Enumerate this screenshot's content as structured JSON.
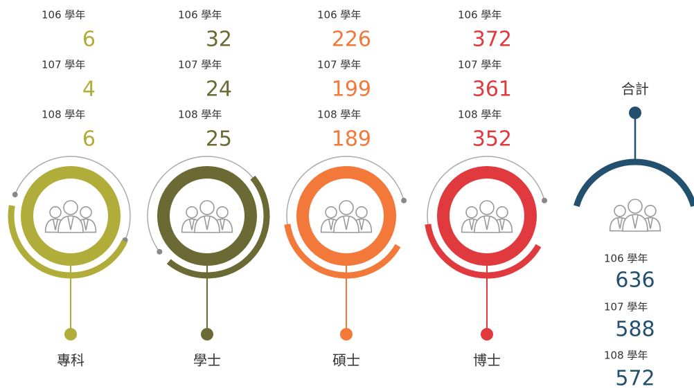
{
  "groups": [
    {
      "name": "專科",
      "color": "#b0ad3a",
      "years": [
        {
          "label": "106 學年",
          "value": 6
        },
        {
          "label": "107 學年",
          "value": 4
        },
        {
          "label": "108 學年",
          "value": 6
        }
      ]
    },
    {
      "name": "學士",
      "color": "#6b6934",
      "years": [
        {
          "label": "106 學年",
          "value": 32
        },
        {
          "label": "107 學年",
          "value": 24
        },
        {
          "label": "108 學年",
          "value": 25
        }
      ]
    },
    {
      "name": "碩士",
      "color": "#f2793a",
      "years": [
        {
          "label": "106 學年",
          "value": 226
        },
        {
          "label": "107 學年",
          "value": 199
        },
        {
          "label": "108 學年",
          "value": 189
        }
      ]
    },
    {
      "name": "博士",
      "color": "#e03a3e",
      "years": [
        {
          "label": "106 學年",
          "value": 372
        },
        {
          "label": "107 學年",
          "value": 361
        },
        {
          "label": "108 學年",
          "value": 352
        }
      ]
    }
  ],
  "total": {
    "name": "合計",
    "color": "#23506e",
    "years": [
      {
        "label": "106 學年",
        "value": 636
      },
      {
        "label": "107 學年",
        "value": 588
      },
      {
        "label": "108 學年",
        "value": 572
      }
    ]
  }
}
